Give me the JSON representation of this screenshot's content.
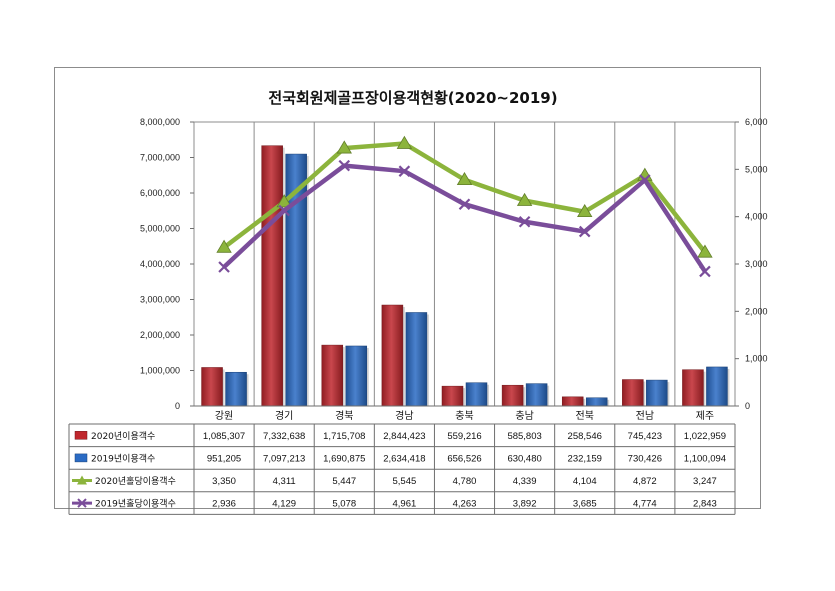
{
  "chart_data": {
    "type": "bar",
    "title": "전국회원제골프장이용객현황(2020~2019)",
    "categories": [
      "강원",
      "경기",
      "경북",
      "경남",
      "충북",
      "충남",
      "전북",
      "전남",
      "제주"
    ],
    "y_left": {
      "min": 0,
      "max": 8000000,
      "ticks": [
        "0",
        "1,000,000",
        "2,000,000",
        "3,000,000",
        "4,000,000",
        "5,000,000",
        "6,000,000",
        "7,000,000",
        "8,000,000"
      ]
    },
    "y_right": {
      "min": 0,
      "max": 6000,
      "ticks": [
        "0",
        "1,000",
        "2,000",
        "3,000",
        "4,000",
        "5,000",
        "6,000"
      ]
    },
    "grid": "vertical",
    "legend_placement": "data-table",
    "series": [
      {
        "name": "2020년이용객수",
        "type": "bar",
        "axis": "left",
        "color": "#c0272d",
        "values": [
          1085307,
          7332638,
          1715708,
          2844423,
          559216,
          585803,
          258546,
          745423,
          1022959
        ],
        "labels": [
          "1,085,307",
          "7,332,638",
          "1,715,708",
          "2,844,423",
          "559,216",
          "585,803",
          "258,546",
          "745,423",
          "1,022,959"
        ]
      },
      {
        "name": "2019년이용객수",
        "type": "bar",
        "axis": "left",
        "color": "#2a6bc4",
        "values": [
          951205,
          7097213,
          1690875,
          2634418,
          656526,
          630480,
          232159,
          730426,
          1100094
        ],
        "labels": [
          "951,205",
          "7,097,213",
          "1,690,875",
          "2,634,418",
          "656,526",
          "630,480",
          "232,159",
          "730,426",
          "1,100,094"
        ]
      },
      {
        "name": "2020년홀당이용객수",
        "type": "line",
        "axis": "right",
        "color": "#8cb43c",
        "marker": "triangle",
        "values": [
          3350,
          4311,
          5447,
          5545,
          4780,
          4339,
          4104,
          4872,
          3247
        ],
        "labels": [
          "3,350",
          "4,311",
          "5,447",
          "5,545",
          "4,780",
          "4,339",
          "4,104",
          "4,872",
          "3,247"
        ]
      },
      {
        "name": "2019년홀당이용객수",
        "type": "line",
        "axis": "right",
        "color": "#7a4d9a",
        "marker": "x",
        "values": [
          2936,
          4129,
          5078,
          4961,
          4263,
          3892,
          3685,
          4774,
          2843
        ],
        "labels": [
          "2,936",
          "4,129",
          "5,078",
          "4,961",
          "4,263",
          "3,892",
          "3,685",
          "4,774",
          "2,843"
        ]
      }
    ]
  }
}
